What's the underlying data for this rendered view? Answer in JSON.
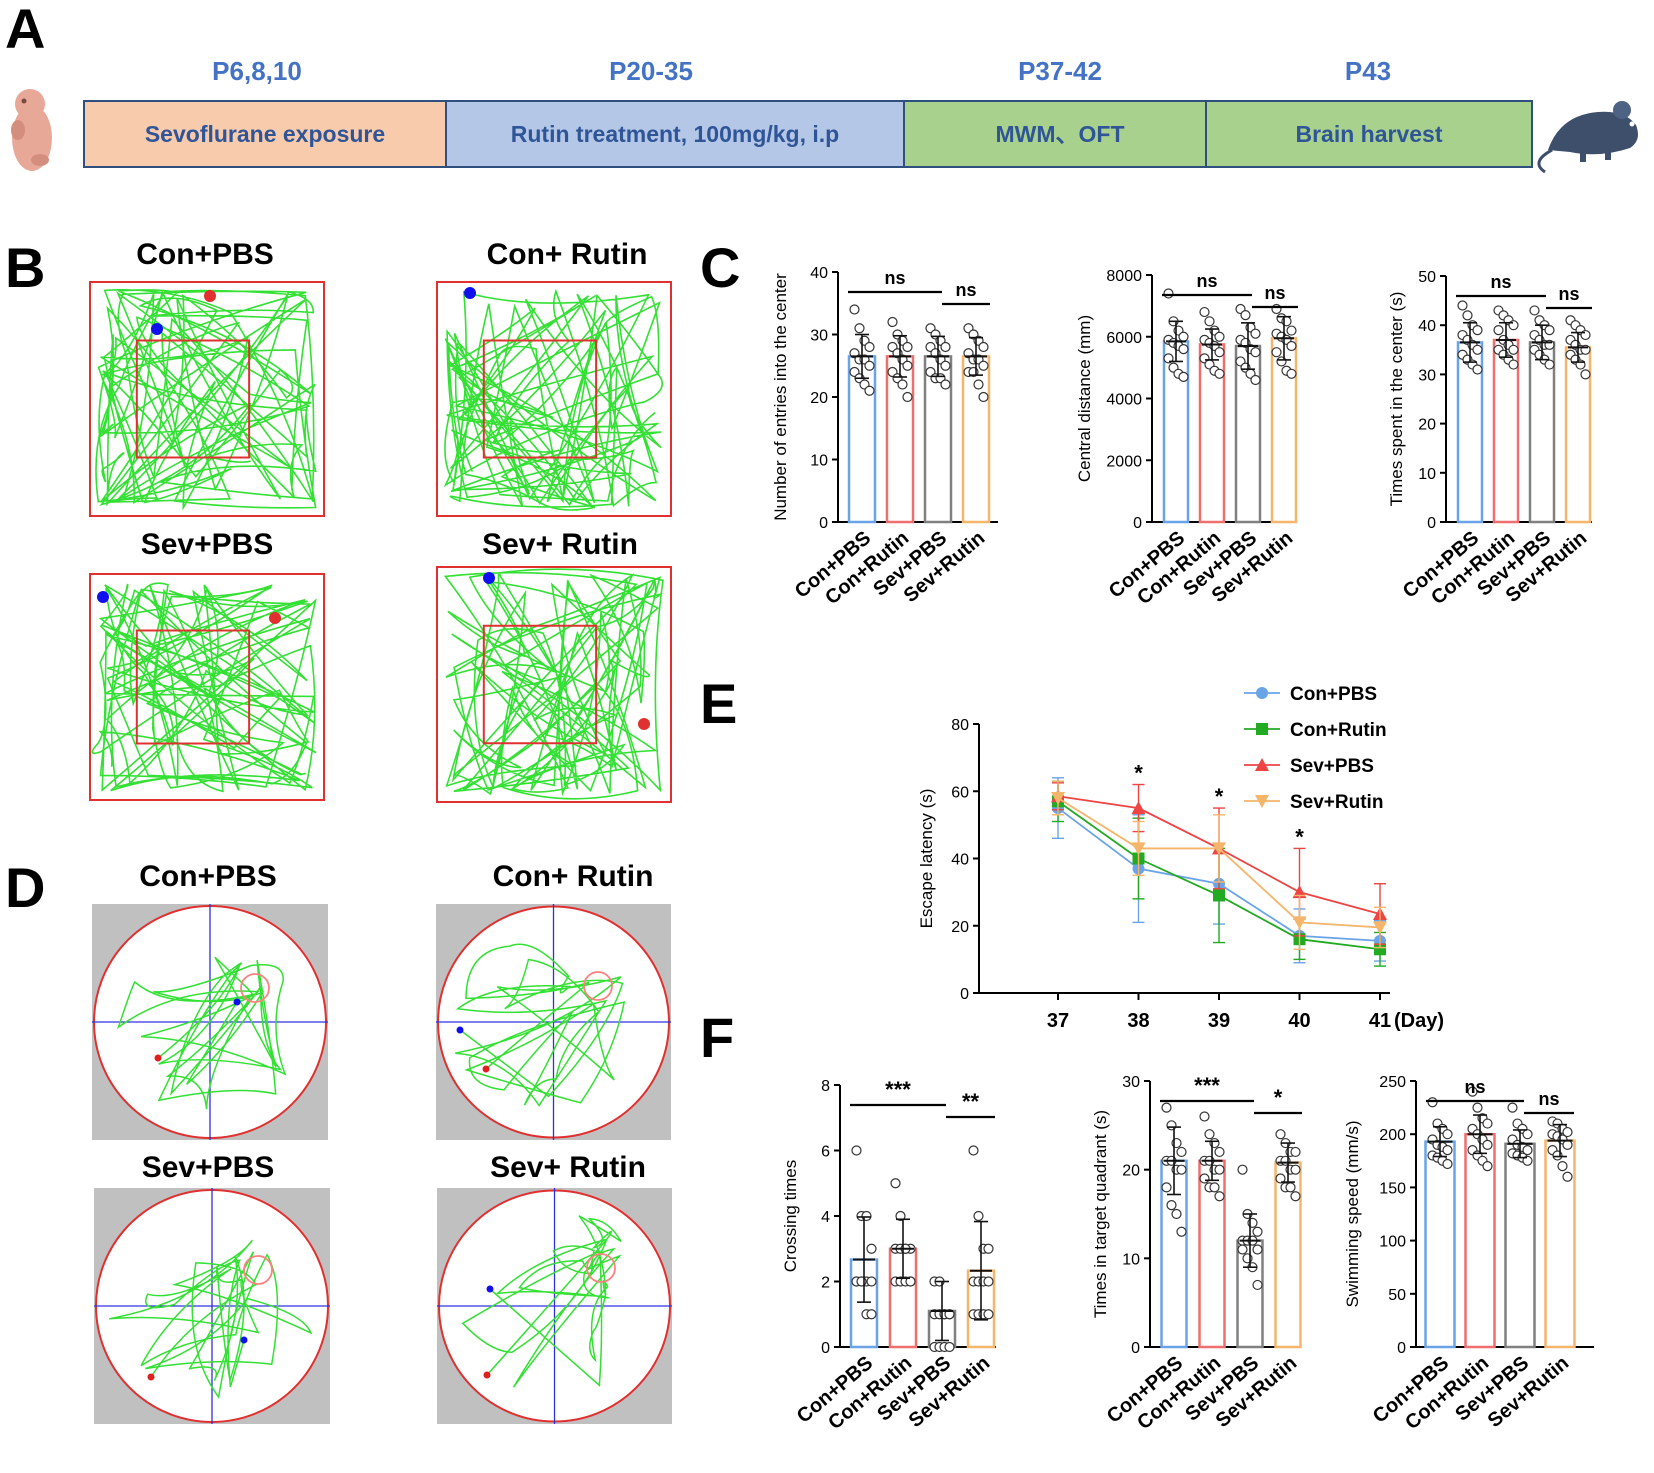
{
  "panel_labels": [
    "A",
    "B",
    "C",
    "D",
    "E",
    "F"
  ],
  "timeline": {
    "stages": [
      {
        "time": "P6,8,10",
        "label": "Sevoflurane exposure",
        "color": "#f8cbad"
      },
      {
        "time": "P20-35",
        "label": "Rutin treatment, 100mg/kg, i.p",
        "color": "#b4c7e7"
      },
      {
        "time": "P37-42",
        "label": "MWM、OFT",
        "color": "#a9d18e"
      },
      {
        "time": "P43",
        "label": "Brain harvest",
        "color": "#a9d18e"
      }
    ]
  },
  "colors": {
    "con_pbs": "#6aa4e8",
    "con_rutin": "#ef6f6f",
    "sev_pbs": "#808080",
    "sev_rutin": "#f5b56b",
    "track": "#33e033",
    "zone": "#e03030",
    "mwm_bg": "#c0c0c0"
  },
  "open_field_titles": [
    "Con+PBS",
    "Con+ Rutin",
    "Sev+PBS",
    "Sev+ Rutin"
  ],
  "mwm_titles": [
    "Con+PBS",
    "Con+ Rutin",
    "Sev+PBS",
    "Sev+ Rutin"
  ],
  "chart_data": [
    {
      "id": "c1",
      "type": "bar",
      "ylabel": "Number of entries into the center",
      "ylim": [
        0,
        40
      ],
      "yticks": [
        0,
        10,
        20,
        30,
        40
      ],
      "categories": [
        "Con+PBS",
        "Con+Rutin",
        "Sev+PBS",
        "Sev+Rutin"
      ],
      "values": [
        26.5,
        26.5,
        26.5,
        26.5
      ],
      "errors": [
        3.5,
        3.3,
        3.2,
        3.0
      ],
      "points": [
        [
          34,
          31,
          29,
          28,
          27,
          26,
          26,
          25,
          24,
          23,
          22,
          21
        ],
        [
          32,
          30,
          29,
          28,
          28,
          27,
          26,
          25,
          24,
          23,
          22,
          20
        ],
        [
          31,
          30,
          29,
          28,
          28,
          27,
          26,
          25,
          24,
          23,
          23,
          22
        ],
        [
          31,
          30,
          29,
          28,
          27,
          26,
          26,
          25,
          24,
          24,
          22,
          20
        ]
      ],
      "significance": [
        {
          "from": 0,
          "to": 2,
          "label": "ns"
        },
        {
          "from": 2,
          "to": 3,
          "label": "ns"
        }
      ]
    },
    {
      "id": "c2",
      "type": "bar",
      "ylabel": "Central distance (mm)",
      "ylim": [
        0,
        8000
      ],
      "yticks": [
        0,
        2000,
        4000,
        6000,
        8000
      ],
      "categories": [
        "Con+PBS",
        "Con+Rutin",
        "Sev+PBS",
        "Sev+Rutin"
      ],
      "values": [
        5850,
        5750,
        5700,
        5950
      ],
      "errors": [
        650,
        500,
        750,
        700
      ],
      "points": [
        [
          7400,
          6500,
          6200,
          6000,
          5900,
          5800,
          5700,
          5600,
          5300,
          5000,
          4800,
          4700
        ],
        [
          6800,
          6500,
          6200,
          6000,
          5900,
          5800,
          5700,
          5500,
          5300,
          5100,
          4900,
          4800
        ],
        [
          6900,
          6700,
          6300,
          6100,
          5900,
          5800,
          5600,
          5500,
          5200,
          5000,
          4800,
          4600
        ],
        [
          6900,
          6600,
          6500,
          6200,
          6100,
          6000,
          5900,
          5700,
          5500,
          5200,
          4900,
          4800
        ]
      ],
      "significance": [
        {
          "from": 0,
          "to": 2,
          "label": "ns"
        },
        {
          "from": 2,
          "to": 3,
          "label": "ns"
        }
      ]
    },
    {
      "id": "c3",
      "type": "bar",
      "ylabel": "Times spent in the center (s)",
      "ylim": [
        0,
        50
      ],
      "yticks": [
        0,
        10,
        20,
        30,
        40,
        50
      ],
      "categories": [
        "Con+PBS",
        "Con+Rutin",
        "Sev+PBS",
        "Sev+Rutin"
      ],
      "values": [
        36.5,
        37.0,
        36.5,
        35.5
      ],
      "errors": [
        4.0,
        3.5,
        3.5,
        3.0
      ],
      "points": [
        [
          44,
          42,
          40,
          39,
          38,
          37,
          36,
          35,
          34,
          33,
          32,
          31
        ],
        [
          43,
          42,
          41,
          40,
          39,
          37,
          36,
          35,
          35,
          34,
          33,
          32
        ],
        [
          43,
          41,
          40,
          39,
          38,
          37,
          36,
          36,
          35,
          34,
          33,
          32
        ],
        [
          41,
          40,
          39,
          38,
          37,
          36,
          35,
          35,
          34,
          33,
          32,
          30
        ]
      ],
      "significance": [
        {
          "from": 0,
          "to": 2,
          "label": "ns"
        },
        {
          "from": 2,
          "to": 3,
          "label": "ns"
        }
      ]
    },
    {
      "id": "e",
      "type": "line",
      "ylabel": "Escape latency (s)",
      "xlabel": "(Day)",
      "x": [
        37,
        38,
        39,
        40,
        41
      ],
      "ylim": [
        0,
        80
      ],
      "yticks": [
        0,
        20,
        40,
        60,
        80
      ],
      "series": [
        {
          "name": "Con+PBS",
          "marker": "circle",
          "values": [
            55,
            37,
            32.5,
            17,
            15.5
          ],
          "errors": [
            9,
            16,
            12,
            8,
            6
          ]
        },
        {
          "name": "Con+Rutin",
          "marker": "square",
          "values": [
            57,
            40,
            29,
            16,
            13
          ],
          "errors": [
            6,
            12,
            14,
            6,
            5
          ]
        },
        {
          "name": "Sev+PBS",
          "marker": "triangle",
          "values": [
            58.5,
            55,
            43,
            30,
            23.5
          ],
          "errors": [
            4,
            7,
            12,
            13,
            9
          ]
        },
        {
          "name": "Sev+Rutin",
          "marker": "triangle-down",
          "values": [
            58,
            43,
            43,
            21,
            19.5
          ],
          "errors": [
            5,
            8,
            10,
            8,
            6
          ]
        }
      ],
      "annotations": [
        {
          "x": 38,
          "label": "*"
        },
        {
          "x": 39,
          "label": "*"
        },
        {
          "x": 40,
          "label": "*"
        }
      ]
    },
    {
      "id": "f1",
      "type": "bar",
      "ylabel": "Crossing times",
      "ylim": [
        0,
        8
      ],
      "yticks": [
        0,
        2,
        4,
        6,
        8
      ],
      "categories": [
        "Con+PBS",
        "Con+Rutin",
        "Sev+PBS",
        "Sev+Rutin"
      ],
      "values": [
        2.67,
        3.0,
        1.1,
        2.33
      ],
      "errors": [
        1.3,
        0.9,
        0.9,
        1.5
      ],
      "points": [
        [
          6,
          4,
          4,
          3,
          2,
          2,
          2,
          2,
          2,
          2,
          1,
          1
        ],
        [
          5,
          4,
          3,
          3,
          3,
          3,
          3,
          2,
          2,
          2,
          2,
          2
        ],
        [
          2,
          2,
          1,
          1,
          1,
          1,
          1,
          1,
          0,
          0,
          0,
          0
        ],
        [
          6,
          4,
          3,
          3,
          2,
          2,
          2,
          2,
          1,
          1,
          1,
          1
        ]
      ],
      "significance": [
        {
          "from": 0,
          "to": 2,
          "label": "***"
        },
        {
          "from": 2,
          "to": 3,
          "label": "**"
        }
      ]
    },
    {
      "id": "f2",
      "type": "bar",
      "ylabel": "Times in target quadrant (s)",
      "ylim": [
        0,
        30
      ],
      "yticks": [
        0,
        10,
        20,
        30
      ],
      "categories": [
        "Con+PBS",
        "Con+Rutin",
        "Sev+PBS",
        "Sev+Rutin"
      ],
      "values": [
        21.0,
        21.0,
        12.0,
        20.8
      ],
      "errors": [
        3.8,
        2.2,
        3.0,
        2.2
      ],
      "points": [
        [
          27,
          25,
          23,
          22,
          21,
          21,
          20,
          20,
          18,
          16,
          15,
          13
        ],
        [
          26,
          24,
          23,
          22,
          21,
          21,
          20,
          20,
          19,
          18,
          18,
          17
        ],
        [
          20,
          15,
          14,
          13,
          12,
          12,
          12,
          11,
          11,
          10,
          9,
          7
        ],
        [
          24,
          23,
          22,
          22,
          21,
          21,
          20,
          20,
          19,
          18,
          18,
          17
        ]
      ],
      "significance": [
        {
          "from": 0,
          "to": 2,
          "label": "***"
        },
        {
          "from": 2,
          "to": 3,
          "label": "*"
        }
      ]
    },
    {
      "id": "f3",
      "type": "bar",
      "ylabel": "Swimming speed (mm/s)",
      "ylim": [
        0,
        250
      ],
      "yticks": [
        0,
        50,
        100,
        150,
        200,
        250
      ],
      "categories": [
        "Con+PBS",
        "Con+Rutin",
        "Sev+PBS",
        "Sev+Rutin"
      ],
      "values": [
        193,
        200,
        191,
        194
      ],
      "errors": [
        14,
        18,
        13,
        15
      ],
      "points": [
        [
          230,
          210,
          205,
          200,
          195,
          190,
          188,
          185,
          180,
          178,
          175,
          172
        ],
        [
          240,
          225,
          215,
          210,
          205,
          200,
          195,
          190,
          185,
          180,
          175,
          170
        ],
        [
          225,
          210,
          205,
          200,
          195,
          190,
          188,
          185,
          182,
          180,
          178,
          175
        ],
        [
          212,
          210,
          205,
          202,
          200,
          198,
          195,
          190,
          185,
          180,
          170,
          160
        ]
      ],
      "significance": [
        {
          "from": 0,
          "to": 2,
          "label": "ns"
        },
        {
          "from": 2,
          "to": 3,
          "label": "ns"
        }
      ]
    }
  ]
}
